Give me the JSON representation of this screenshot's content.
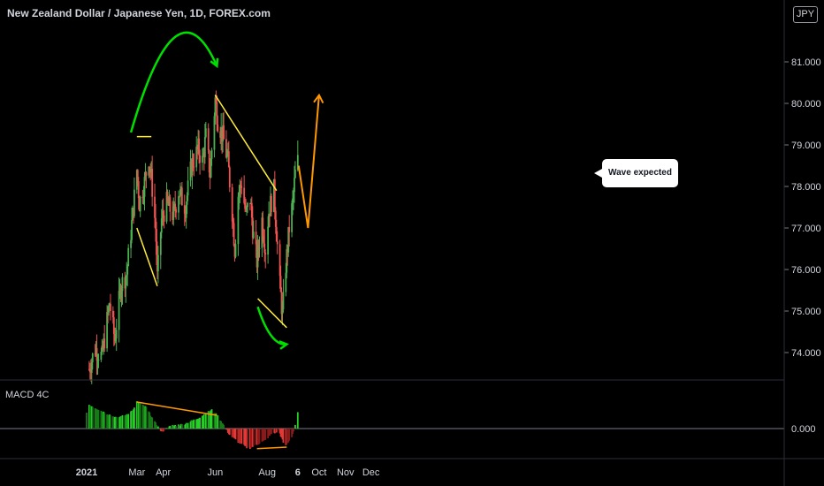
{
  "header": {
    "title": "New Zealand Dollar / Japanese Yen, 1D, FOREX.com",
    "currency_badge": "JPY"
  },
  "callout": {
    "text": "Wave expected"
  },
  "indicator": {
    "label": "MACD 4C"
  },
  "colors": {
    "up": "#26a69a",
    "green": "#4caf50",
    "red": "#ef5350",
    "yellow": "#ffeb3b",
    "orange": "#ff9800",
    "arrow_green": "#00e000",
    "axis_text": "#d1d4dc",
    "grid": "#2a2e39"
  },
  "chart_data": [
    {
      "type": "candlestick",
      "title": "New Zealand Dollar / Japanese Yen, 1D, FOREX.com",
      "xlabel": "",
      "ylabel": "",
      "x_tick_labels": [
        "2021",
        "Mar",
        "Apr",
        "Jun",
        "Aug",
        "6",
        "Oct",
        "Nov",
        "Dec"
      ],
      "y_tick_labels": [
        "74.000",
        "75.000",
        "76.000",
        "77.000",
        "78.000",
        "79.000",
        "80.000",
        "81.000"
      ],
      "ylim": [
        73.4,
        82.3
      ],
      "grid": false,
      "path_closes": [
        [
          "2021-01-04",
          73.6
        ],
        [
          "2021-01-11",
          74.1
        ],
        [
          "2021-01-19",
          73.9
        ],
        [
          "2021-01-28",
          75.2
        ],
        [
          "2021-02-03",
          74.3
        ],
        [
          "2021-02-10",
          75.6
        ],
        [
          "2021-02-17",
          75.9
        ],
        [
          "2021-02-24",
          77.3
        ],
        [
          "2021-03-01",
          78.4
        ],
        [
          "2021-03-04",
          77.6
        ],
        [
          "2021-03-10",
          78.1
        ],
        [
          "2021-03-15",
          78.7
        ],
        [
          "2021-03-18",
          78.2
        ],
        [
          "2021-03-23",
          77.0
        ],
        [
          "2021-03-25",
          75.8
        ],
        [
          "2021-03-30",
          77.2
        ],
        [
          "2021-04-05",
          77.6
        ],
        [
          "2021-04-13",
          77.3
        ],
        [
          "2021-04-19",
          77.9
        ],
        [
          "2021-04-27",
          77.5
        ],
        [
          "2021-05-04",
          78.5
        ],
        [
          "2021-05-12",
          78.9
        ],
        [
          "2021-05-17",
          78.6
        ],
        [
          "2021-05-21",
          79.2
        ],
        [
          "2021-05-26",
          78.3
        ],
        [
          "2021-06-01",
          80.1
        ],
        [
          "2021-06-04",
          79.6
        ],
        [
          "2021-06-10",
          79.2
        ],
        [
          "2021-06-16",
          78.6
        ],
        [
          "2021-06-21",
          77.4
        ],
        [
          "2021-06-24",
          76.5
        ],
        [
          "2021-06-28",
          77.8
        ],
        [
          "2021-07-02",
          78.1
        ],
        [
          "2021-07-07",
          77.3
        ],
        [
          "2021-07-12",
          77.7
        ],
        [
          "2021-07-16",
          76.8
        ],
        [
          "2021-07-20",
          76.2
        ],
        [
          "2021-07-26",
          77.2
        ],
        [
          "2021-07-30",
          76.5
        ],
        [
          "2021-08-03",
          77.4
        ],
        [
          "2021-08-09",
          77.9
        ],
        [
          "2021-08-12",
          76.9
        ],
        [
          "2021-08-16",
          75.6
        ],
        [
          "2021-08-19",
          74.9
        ],
        [
          "2021-08-23",
          76.1
        ],
        [
          "2021-08-27",
          77.0
        ],
        [
          "2021-08-31",
          77.6
        ],
        [
          "2021-09-03",
          78.3
        ],
        [
          "2021-09-06",
          78.6
        ]
      ],
      "annotations": [
        {
          "kind": "arc-arrow",
          "color": "green",
          "points": [
            [
              "2021-02-22",
              79.3
            ],
            [
              "2021-04-15",
              81.6
            ],
            [
              "2021-06-03",
              80.9
            ]
          ]
        },
        {
          "kind": "trendline",
          "color": "yellow",
          "points": [
            [
              "2021-03-01",
              79.2
            ],
            [
              "2021-03-18",
              79.2
            ]
          ]
        },
        {
          "kind": "trendline",
          "color": "yellow",
          "points": [
            [
              "2021-03-01",
              77.0
            ],
            [
              "2021-03-25",
              75.6
            ]
          ]
        },
        {
          "kind": "trendline",
          "color": "yellow",
          "points": [
            [
              "2021-06-01",
              80.2
            ],
            [
              "2021-08-12",
              77.9
            ]
          ]
        },
        {
          "kind": "trendline",
          "color": "yellow",
          "points": [
            [
              "2021-07-21",
              75.3
            ],
            [
              "2021-08-24",
              74.6
            ]
          ]
        },
        {
          "kind": "arc-arrow",
          "color": "green",
          "points": [
            [
              "2021-07-21",
              75.1
            ],
            [
              "2021-08-06",
              74.4
            ],
            [
              "2021-08-24",
              74.2
            ]
          ]
        },
        {
          "kind": "projection",
          "color": "orange",
          "points": [
            [
              "2021-09-07",
              78.5
            ],
            [
              "2021-09-18",
              77.0
            ],
            [
              "2021-10-01",
              80.2
            ]
          ]
        }
      ]
    },
    {
      "type": "bar",
      "title": "MACD 4C",
      "y_tick_labels": [
        "0.000"
      ],
      "zero_line": true,
      "histogram_profile": [
        [
          "2021-01-04",
          0.45
        ],
        [
          "2021-01-20",
          0.32
        ],
        [
          "2021-02-05",
          0.2
        ],
        [
          "2021-02-15",
          0.25
        ],
        [
          "2021-02-25",
          0.35
        ],
        [
          "2021-03-01",
          0.5
        ],
        [
          "2021-03-12",
          0.4
        ],
        [
          "2021-03-22",
          0.12
        ],
        [
          "2021-03-30",
          -0.06
        ],
        [
          "2021-04-10",
          0.05
        ],
        [
          "2021-04-25",
          0.08
        ],
        [
          "2021-05-10",
          0.18
        ],
        [
          "2021-05-28",
          0.35
        ],
        [
          "2021-06-05",
          0.22
        ],
        [
          "2021-06-18",
          -0.12
        ],
        [
          "2021-06-28",
          -0.25
        ],
        [
          "2021-07-10",
          -0.38
        ],
        [
          "2021-07-20",
          -0.3
        ],
        [
          "2021-07-30",
          -0.22
        ],
        [
          "2021-08-06",
          -0.1
        ],
        [
          "2021-08-15",
          -0.05
        ],
        [
          "2021-08-22",
          -0.35
        ],
        [
          "2021-08-30",
          -0.15
        ],
        [
          "2021-09-03",
          0.05
        ],
        [
          "2021-09-06",
          0.3
        ]
      ],
      "annotations": [
        {
          "kind": "trendline",
          "color": "orange",
          "points": [
            [
              "2021-03-01",
              0.5
            ],
            [
              "2021-06-03",
              0.25
            ]
          ]
        },
        {
          "kind": "trendline",
          "color": "orange",
          "points": [
            [
              "2021-07-20",
              -0.38
            ],
            [
              "2021-08-24",
              -0.35
            ]
          ]
        }
      ]
    }
  ]
}
